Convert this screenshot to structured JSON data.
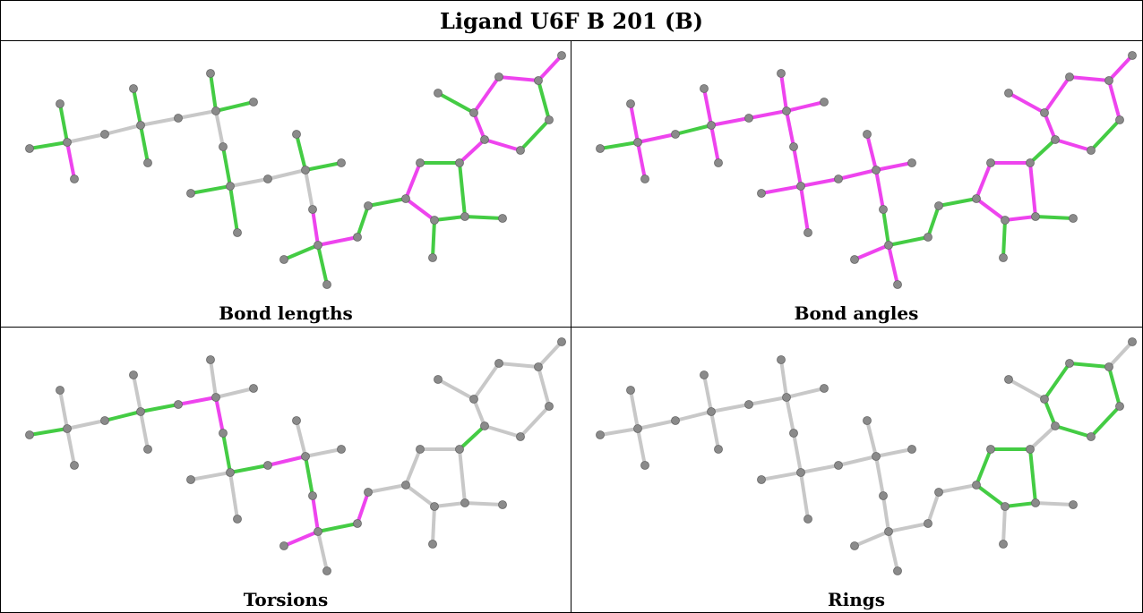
{
  "title": "Ligand U6F B 201 (B)",
  "colors": {
    "bond_default": "#c8c8c8",
    "bond_green": "#44cc44",
    "bond_magenta": "#ee44ee",
    "atom": "#8a8a8a"
  },
  "panels": [
    {
      "caption": "Bond lengths",
      "magenta": [
        [
          1,
          3
        ],
        [
          8,
          15
        ],
        [
          11,
          12
        ],
        [
          12,
          17
        ],
        [
          12,
          13
        ],
        [
          13,
          14
        ],
        [
          14,
          15
        ]
      ],
      "green": [
        [
          0,
          4
        ],
        [
          4,
          6
        ],
        [
          9,
          10
        ],
        [
          9,
          11
        ],
        [
          5,
          6
        ],
        [
          1,
          2
        ],
        [
          16,
          17
        ],
        [
          2,
          18
        ],
        [
          18,
          19
        ],
        [
          19,
          21
        ],
        [
          21,
          17
        ],
        [
          19,
          20
        ],
        [
          21,
          22
        ],
        [
          24,
          26
        ],
        [
          25,
          26
        ],
        [
          27,
          24
        ],
        [
          27,
          28
        ],
        [
          29,
          28
        ],
        [
          29,
          7
        ],
        [
          8,
          23
        ],
        [
          32,
          30
        ],
        [
          33,
          7
        ],
        [
          30,
          31
        ],
        [
          30,
          34
        ]
      ]
    },
    {
      "caption": "Bond angles",
      "magenta": [
        [
          0,
          1
        ],
        [
          1,
          2
        ],
        [
          1,
          3
        ],
        [
          1,
          4
        ],
        [
          4,
          5
        ],
        [
          4,
          6
        ],
        [
          5,
          6
        ],
        [
          6,
          7
        ],
        [
          6,
          8
        ],
        [
          7,
          9
        ],
        [
          9,
          10
        ],
        [
          9,
          11
        ],
        [
          10,
          12
        ],
        [
          12,
          13
        ],
        [
          12,
          14
        ],
        [
          13,
          14
        ],
        [
          14,
          15
        ],
        [
          15,
          16
        ],
        [
          16,
          17
        ],
        [
          17,
          18
        ],
        [
          17,
          19
        ],
        [
          11,
          20
        ],
        [
          19,
          21
        ],
        [
          21,
          22
        ],
        [
          23,
          24
        ],
        [
          24,
          25
        ],
        [
          25,
          26
        ],
        [
          26,
          27
        ],
        [
          27,
          28
        ],
        [
          28,
          29
        ],
        [
          29,
          23
        ],
        [
          31,
          30
        ],
        [
          32,
          30
        ],
        [
          30,
          33
        ],
        [
          30,
          34
        ]
      ],
      "green": [
        [
          33,
          31
        ],
        [
          24,
          20
        ],
        [
          20,
          21
        ],
        [
          22,
          23
        ],
        [
          16,
          31
        ],
        [
          18,
          19
        ],
        [
          30,
          33
        ]
      ]
    },
    {
      "caption": "Torsions",
      "magenta": [
        [
          11,
          12
        ],
        [
          12,
          13
        ],
        [
          13,
          30
        ],
        [
          30,
          31
        ]
      ],
      "green": [
        [
          1,
          4
        ],
        [
          4,
          5
        ],
        [
          5,
          6
        ],
        [
          6,
          7
        ],
        [
          12,
          15
        ],
        [
          14,
          15
        ],
        [
          29,
          23
        ],
        [
          30,
          32
        ],
        [
          16,
          33
        ],
        [
          33,
          30
        ]
      ]
    },
    {
      "caption": "Rings",
      "magenta": [],
      "green": [
        [
          23,
          24
        ],
        [
          24,
          25
        ],
        [
          25,
          26
        ],
        [
          26,
          27
        ],
        [
          27,
          28
        ],
        [
          28,
          29
        ],
        [
          29,
          23
        ],
        [
          16,
          17
        ],
        [
          17,
          18
        ],
        [
          18,
          19
        ],
        [
          19,
          21
        ],
        [
          21,
          16
        ]
      ]
    }
  ]
}
